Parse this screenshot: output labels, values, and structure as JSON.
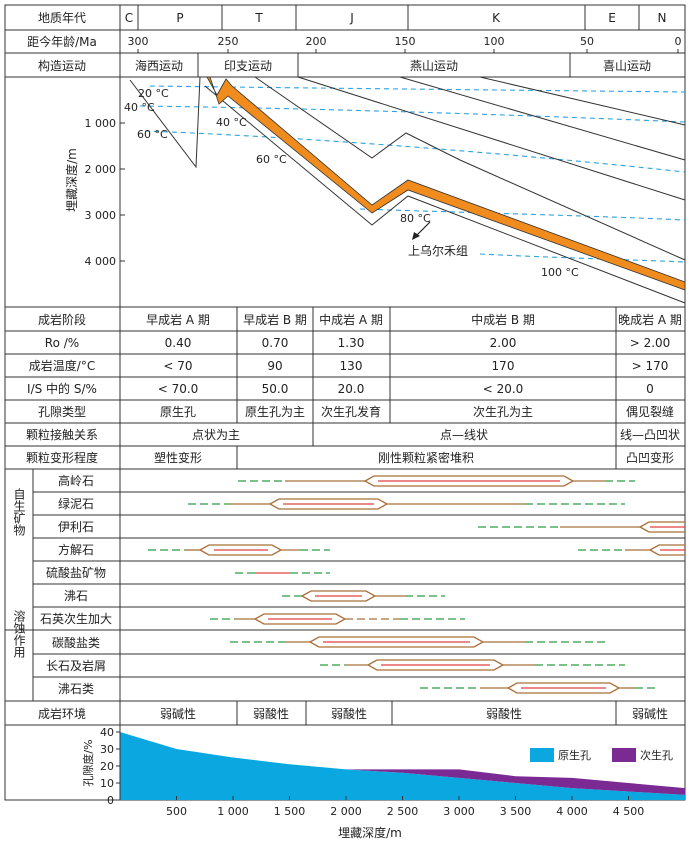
{
  "header": {
    "era_label": "地质年代",
    "eras": [
      "C",
      "P",
      "T",
      "J",
      "K",
      "E",
      "N"
    ],
    "age_label": "距今年龄/Ma",
    "age_ticks": [
      "300",
      "250",
      "200",
      "150",
      "100",
      "50",
      "0"
    ],
    "tectonic_label": "构造运动",
    "tectonics": [
      "海西运动",
      "印支运动",
      "燕山运动",
      "喜山运动"
    ]
  },
  "burial": {
    "ylabel": "埋藏深度/m",
    "depth_ticks": [
      "1 000",
      "2 000",
      "3 000",
      "4 000"
    ],
    "temps": [
      "20 °C",
      "40 °C",
      "60 °C",
      "40 °C",
      "60 °C",
      "80 °C",
      "100 °C"
    ],
    "formation_label": "上乌尔禾组"
  },
  "rows": [
    {
      "label": "成岩阶段",
      "cells": [
        "早成岩 A 期",
        "早成岩 B 期",
        "中成岩 A 期",
        "中成岩 B 期",
        "晚成岩 A 期"
      ]
    },
    {
      "label": "Ro /%",
      "cells": [
        "0.40",
        "0.70",
        "1.30",
        "2.00",
        "> 2.00"
      ]
    },
    {
      "label": "成岩温度/°C",
      "cells": [
        "< 70",
        "90",
        "130",
        "170",
        "> 170"
      ]
    },
    {
      "label": "I/S 中的 S/%",
      "cells": [
        "< 70.0",
        "50.0",
        "20.0",
        "< 20.0",
        "0"
      ]
    },
    {
      "label": "孔隙类型",
      "cells": [
        "原生孔",
        "原生孔为主",
        "次生孔发育",
        "次生孔为主",
        "偶见裂缝"
      ]
    },
    {
      "label": "颗粒接触关系",
      "cells": [
        "点状为主",
        "点—线状",
        "线—凸凹状"
      ]
    },
    {
      "label": "颗粒变形程度",
      "cells": [
        "塑性变形",
        "刚性颗粒紧密堆积",
        "凸凹变形"
      ]
    }
  ],
  "groups": {
    "authigenic": "自生矿物",
    "dissolution": "溶蚀作用"
  },
  "minerals": [
    "高岭石",
    "绿泥石",
    "伊利石",
    "方解石",
    "硫酸盐矿物",
    "沸石",
    "石英次生加大"
  ],
  "dissolution": [
    "碳酸盐类",
    "长石及岩屑",
    "沸石类"
  ],
  "environment": {
    "label": "成岩环境",
    "cells": [
      "弱碱性",
      "弱酸性",
      "弱酸性",
      "弱酸性",
      "弱碱性"
    ]
  },
  "chart_data": {
    "type": "area",
    "xlabel": "埋藏深度/m",
    "ylabel": "孔隙度/%",
    "x_ticks": [
      "500",
      "1 000",
      "1 500",
      "2 000",
      "2 500",
      "3 000",
      "3 500",
      "4 000",
      "4 500"
    ],
    "y_ticks": [
      "0",
      "10",
      "20",
      "30",
      "40"
    ],
    "xlim": [
      0,
      5000
    ],
    "ylim": [
      0,
      40
    ],
    "series": [
      {
        "name": "原生孔",
        "color": "#0aa7e0",
        "x": [
          0,
          500,
          1000,
          1500,
          2000,
          2500,
          3000,
          3500,
          4000,
          4500,
          5000
        ],
        "values": [
          40,
          30,
          25,
          21,
          18,
          16,
          13,
          10,
          7,
          5,
          3
        ]
      },
      {
        "name": "次生孔",
        "color": "#7b2a93",
        "x": [
          0,
          500,
          1000,
          1500,
          2000,
          2500,
          3000,
          3500,
          4000,
          4500,
          5000
        ],
        "values": [
          0,
          0,
          0,
          0,
          0,
          2,
          5,
          4,
          6,
          5,
          4
        ]
      }
    ]
  }
}
